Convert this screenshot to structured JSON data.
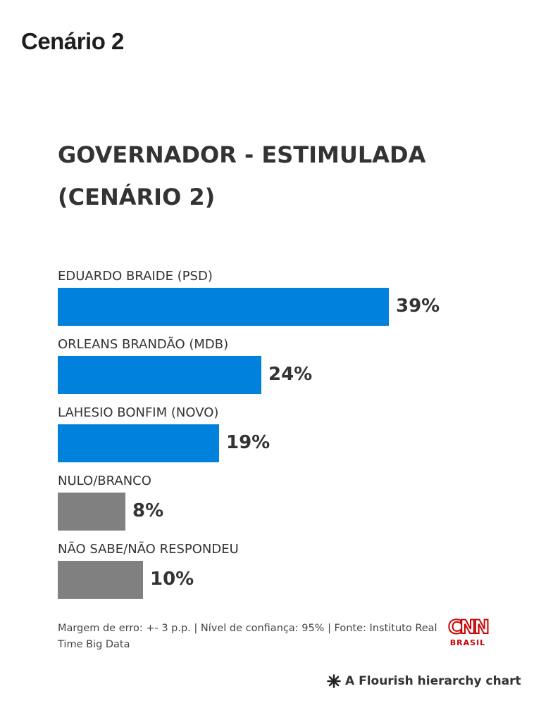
{
  "page": {
    "title": "Cenário 2"
  },
  "colors": {
    "candidate_bar": "#0081db",
    "other_bar": "#808080",
    "text": "#333333",
    "brand_red": "#cc0000"
  },
  "chart_data": {
    "type": "bar",
    "orientation": "horizontal",
    "title": "GOVERNADOR - ESTIMULADA (CENÁRIO 2)",
    "title_lines": [
      "GOVERNADOR - ESTIMULADA",
      "(CENÁRIO 2)"
    ],
    "categories": [
      "EDUARDO BRAIDE (PSD)",
      "ORLEANS BRANDÃO (MDB)",
      "LAHESIO BONFIM (NOVO)",
      "NULO/BRANCO",
      "NÃO SABE/NÃO RESPONDEU"
    ],
    "values": [
      39,
      24,
      19,
      8,
      10
    ],
    "value_labels": [
      "39%",
      "24%",
      "19%",
      "8%",
      "10%"
    ],
    "bar_colors": [
      "#0081db",
      "#0081db",
      "#0081db",
      "#808080",
      "#808080"
    ],
    "unit": "%",
    "xlim": [
      0,
      50
    ],
    "grid": false,
    "legend": "none"
  },
  "footer": {
    "note": "Margem de erro: +- 3 p.p. | Nível de confiança: 95% | Fonte: Instituto Real Time Big Data",
    "logo_main": "CNN",
    "logo_sub": "BRASIL",
    "credit_icon": "flourish-asterisk-icon",
    "credit": "A Flourish hierarchy chart"
  }
}
